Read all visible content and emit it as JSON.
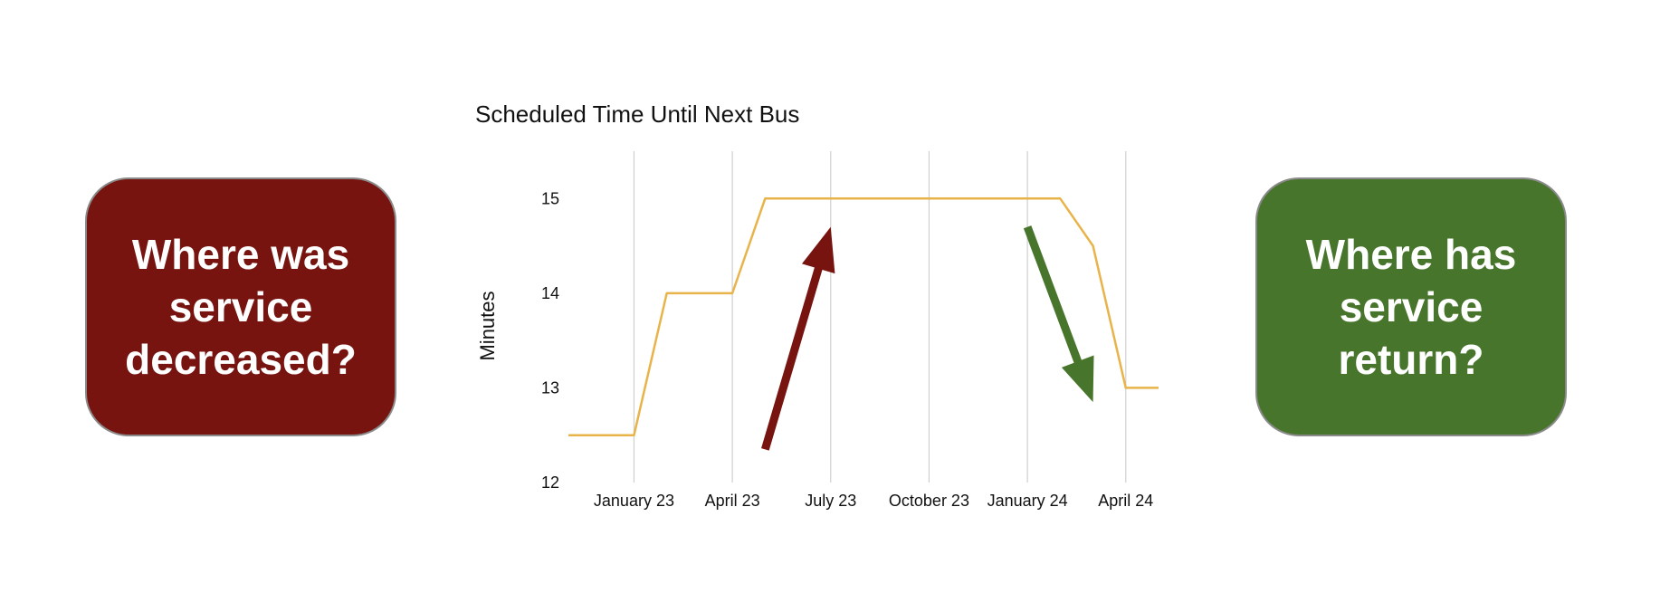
{
  "left_box": {
    "text": "Where was service decreased?",
    "color": "#77140f"
  },
  "right_box": {
    "text": "Where has service return?",
    "color": "#48752c"
  },
  "colors": {
    "line": "#e8b44a",
    "grid": "#cfcfcf",
    "arrow_up": "#77140f",
    "arrow_down": "#48752c"
  },
  "chart_data": {
    "type": "line",
    "title": "Scheduled Time Until Next Bus",
    "xlabel": "",
    "ylabel": "Minutes",
    "x_ticks": [
      "January 23",
      "April 23",
      "July 23",
      "October 23",
      "January 24",
      "April 24"
    ],
    "y_ticks": [
      12,
      13,
      14,
      15
    ],
    "ylim": [
      12,
      15.5
    ],
    "xlim": [
      "2022-11",
      "2024-05"
    ],
    "grid": "vertical",
    "legend": "none",
    "series": [
      {
        "x": [
          "2022-11",
          "2023-01",
          "2023-02",
          "2023-04",
          "2023-05",
          "2023-07",
          "2024-02",
          "2024-03",
          "2024-04",
          "2024-05"
        ],
        "y": [
          12.5,
          12.5,
          14,
          14,
          15,
          15,
          15,
          14.5,
          13,
          13
        ]
      }
    ],
    "annotations": [
      {
        "type": "arrow",
        "direction": "up",
        "from": [
          "2023-05",
          12.35
        ],
        "to": [
          "2023-07",
          14.7
        ]
      },
      {
        "type": "arrow",
        "direction": "down",
        "from": [
          "2024-01",
          14.7
        ],
        "to": [
          "2024-03",
          12.85
        ]
      }
    ]
  }
}
